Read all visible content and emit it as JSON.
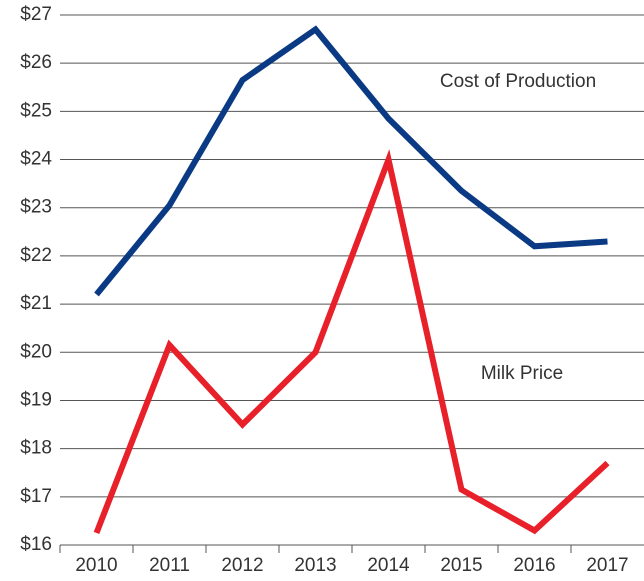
{
  "chart_data": {
    "type": "line",
    "categories": [
      "2010",
      "2011",
      "2012",
      "2013",
      "2014",
      "2015",
      "2016",
      "2017"
    ],
    "series": [
      {
        "name": "Cost of Production",
        "color": "#0b3a84",
        "values": [
          21.2,
          23.05,
          25.65,
          26.7,
          24.85,
          23.35,
          22.2,
          22.3
        ]
      },
      {
        "name": "Milk Price",
        "color": "#e8202a",
        "values": [
          16.25,
          20.15,
          18.5,
          20.0,
          24.0,
          17.15,
          16.3,
          17.7
        ]
      }
    ],
    "ylim": [
      16,
      27
    ],
    "yticks": [
      {
        "value": 16,
        "label": "$16"
      },
      {
        "value": 17,
        "label": "$17"
      },
      {
        "value": 18,
        "label": "$18"
      },
      {
        "value": 19,
        "label": "$19"
      },
      {
        "value": 20,
        "label": "$20"
      },
      {
        "value": 21,
        "label": "$21"
      },
      {
        "value": 22,
        "label": "$22"
      },
      {
        "value": 23,
        "label": "$23"
      },
      {
        "value": 24,
        "label": "$24"
      },
      {
        "value": 25,
        "label": "$25"
      },
      {
        "value": 26,
        "label": "$26"
      },
      {
        "value": 27,
        "label": "$27"
      }
    ],
    "grid": true
  }
}
